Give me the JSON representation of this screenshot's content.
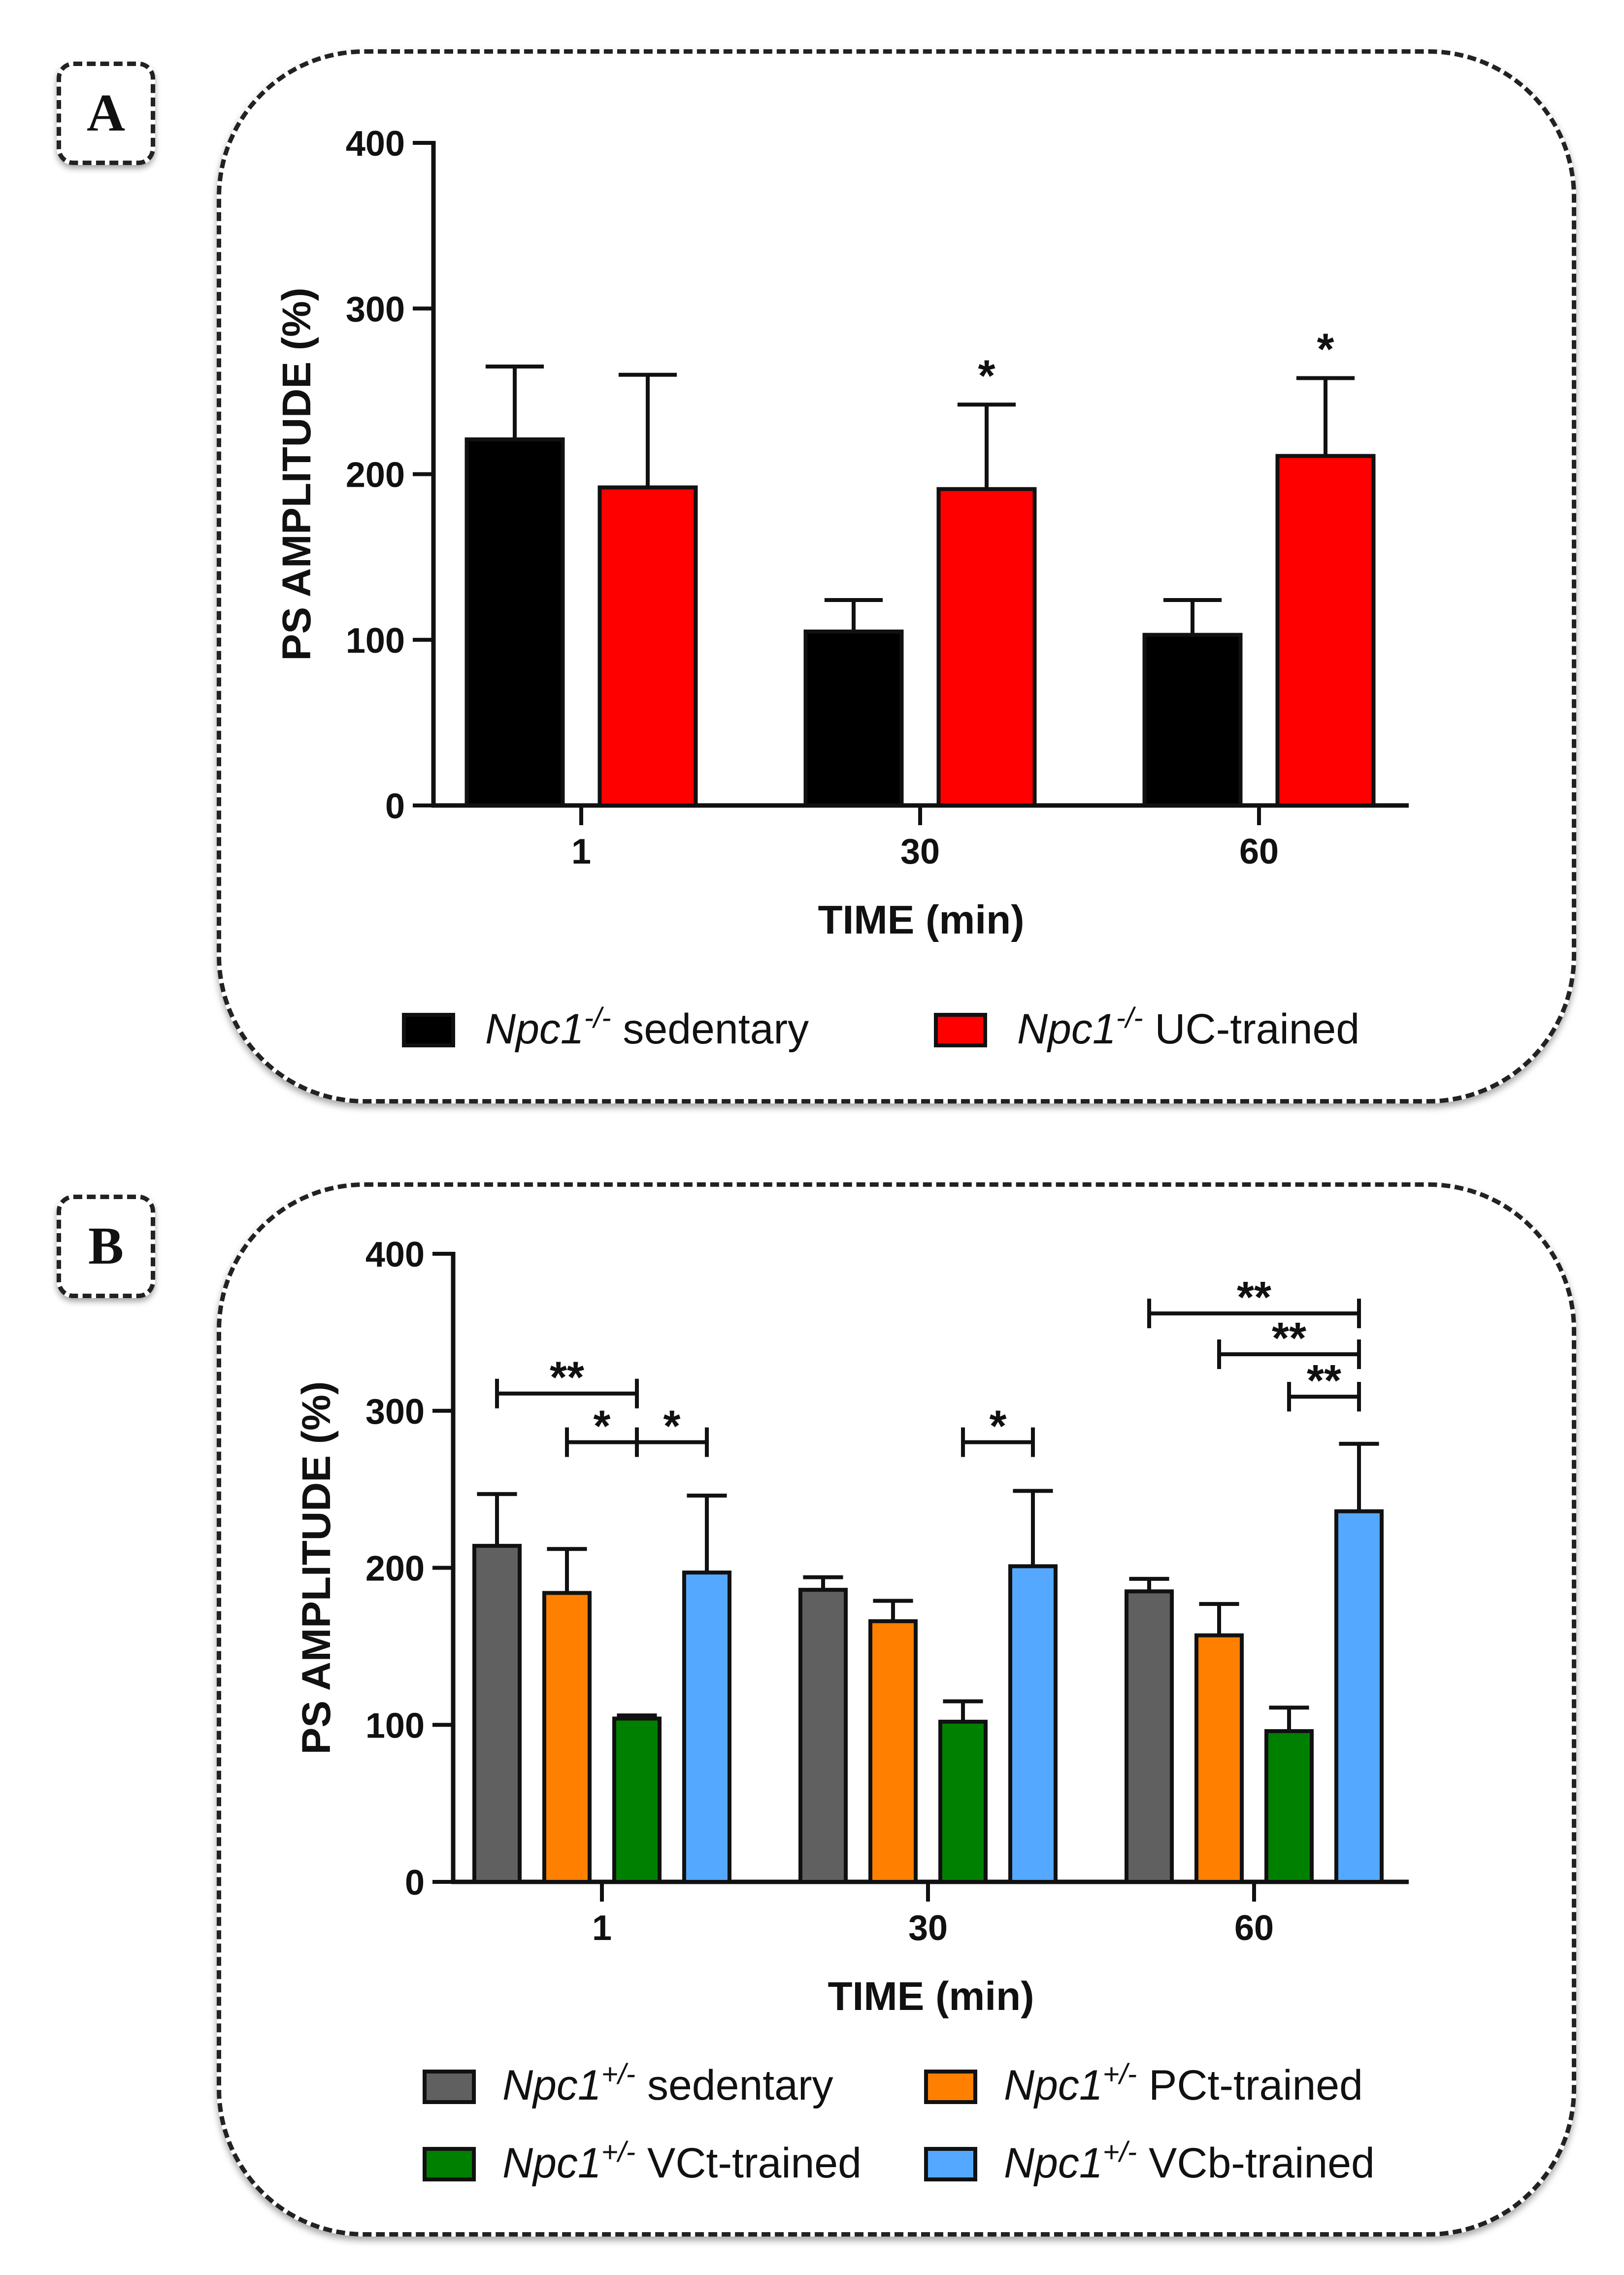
{
  "chart_data": [
    {
      "panel_label": "A",
      "type": "bar",
      "xlabel": "TIME (min)",
      "ylabel": "PS AMPLITUDE (%)",
      "ylim": [
        0,
        400
      ],
      "yticks": [
        "0",
        "100",
        "200",
        "300",
        "400"
      ],
      "categories": [
        "1",
        "30",
        "60"
      ],
      "legend_position": "bottom",
      "series": [
        {
          "name": "sedentary",
          "gene": "Npc1",
          "genotype": "-/-",
          "color": "#000000",
          "values": [
            221,
            105,
            103
          ],
          "errors": [
            44,
            19,
            21
          ]
        },
        {
          "name": "UC-trained",
          "gene": "Npc1",
          "genotype": "-/-",
          "color": "#ff0000",
          "values": [
            192,
            191,
            211
          ],
          "errors": [
            68,
            51,
            47
          ]
        }
      ],
      "annotations": [
        {
          "text": "*",
          "category": 1,
          "series": 1
        },
        {
          "text": "*",
          "category": 2,
          "series": 1
        }
      ]
    },
    {
      "panel_label": "B",
      "type": "bar",
      "xlabel": "TIME (min)",
      "ylabel": "PS AMPLITUDE (%)",
      "ylim": [
        0,
        400
      ],
      "yticks": [
        "0",
        "100",
        "200",
        "300",
        "400"
      ],
      "categories": [
        "1",
        "30",
        "60"
      ],
      "legend_position": "bottom",
      "series": [
        {
          "name": "sedentary",
          "gene": "Npc1",
          "genotype": "+/-",
          "color": "#606060",
          "values": [
            214,
            186,
            185
          ],
          "errors": [
            33,
            8,
            8
          ]
        },
        {
          "name": "PCt-trained",
          "gene": "Npc1",
          "genotype": "+/-",
          "color": "#ff8000",
          "values": [
            184,
            166,
            157
          ],
          "errors": [
            28,
            13,
            20
          ]
        },
        {
          "name": "VCt-trained",
          "gene": "Npc1",
          "genotype": "+/-",
          "color": "#008000",
          "values": [
            104,
            102,
            96
          ],
          "errors": [
            2,
            13,
            15
          ]
        },
        {
          "name": "VCb-trained",
          "gene": "Npc1",
          "genotype": "+/-",
          "color": "#55a8ff",
          "values": [
            197,
            201,
            236
          ],
          "errors": [
            49,
            48,
            43
          ]
        }
      ],
      "brackets": [
        {
          "category": 0,
          "from": 0,
          "to": 2,
          "text": "**",
          "level": 311
        },
        {
          "category": 0,
          "from": 1,
          "to": 2,
          "text": "*",
          "level": 280
        },
        {
          "category": 0,
          "from": 2,
          "to": 3,
          "text": "*",
          "level": 280
        },
        {
          "category": 1,
          "from": 2,
          "to": 3,
          "text": "*",
          "level": 280
        },
        {
          "category": 2,
          "from": 0,
          "to": 3,
          "text": "**",
          "level": 362
        },
        {
          "category": 2,
          "from": 1,
          "to": 3,
          "text": "**",
          "level": 336
        },
        {
          "category": 2,
          "from": 2,
          "to": 3,
          "text": "**",
          "level": 309
        }
      ]
    }
  ]
}
